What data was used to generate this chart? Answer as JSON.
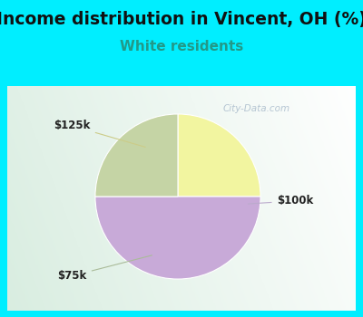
{
  "title": "Income distribution in Vincent, OH (%)",
  "subtitle": "White residents",
  "slices": [
    {
      "label": "$125k",
      "value": 25,
      "color": "#f2f5a0"
    },
    {
      "label": "$100k",
      "value": 50,
      "color": "#c8aad8"
    },
    {
      "label": "$75k",
      "value": 25,
      "color": "#c5d4a5"
    }
  ],
  "title_fontsize": 13.5,
  "subtitle_fontsize": 11,
  "title_color": "#111111",
  "subtitle_color": "#229988",
  "bg_color_cyan": "#00eeff",
  "chart_bg_left": "#d0ece0",
  "chart_bg_right": "#f0f8f4",
  "watermark": "City-Data.com",
  "watermark_color": "#aabccc",
  "annotation_color": "#222222",
  "annotation_fontsize": 8.5,
  "arrow_color_125k": "#cccc88",
  "arrow_color_100k": "#bbaacc",
  "arrow_color_75k": "#aabb99"
}
